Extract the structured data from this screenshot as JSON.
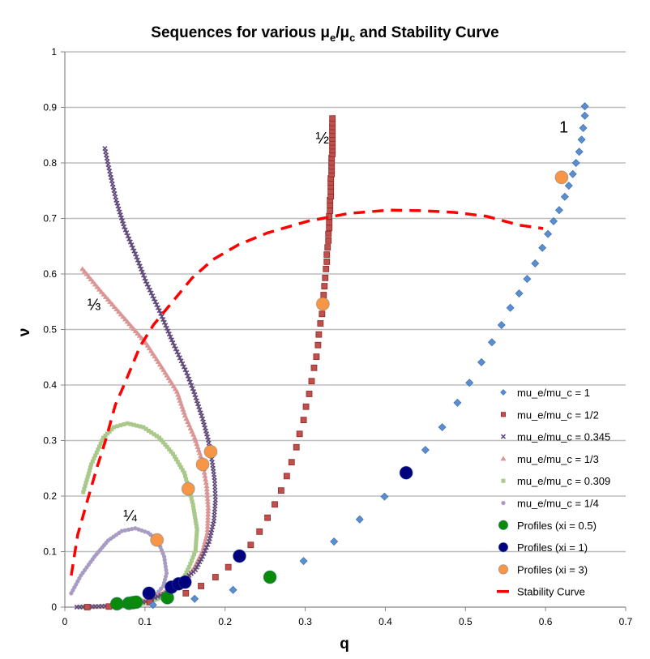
{
  "chart_data": {
    "type": "scatter",
    "title": "Sequences for various μe/μc and Stability Curve",
    "title_parts": {
      "pre": "Sequences for various μ",
      "sub1": "e",
      "mid": "/μ",
      "sub2": "c",
      "post": " and Stability Curve"
    },
    "xlabel": "q",
    "ylabel": "ν",
    "xlim": [
      0,
      0.7
    ],
    "ylim": [
      0,
      1
    ],
    "xticks": [
      "0",
      "0.1",
      "0.2",
      "0.3",
      "0.4",
      "0.5",
      "0.6",
      "0.7"
    ],
    "yticks": [
      "0",
      "0.1",
      "0.2",
      "0.3",
      "0.4",
      "0.5",
      "0.6",
      "0.7",
      "0.8",
      "0.9",
      "1"
    ],
    "grid": "horizontal",
    "legend_position": "right",
    "annotations": [
      {
        "text": "1",
        "x": 0.617,
        "y": 0.855
      },
      {
        "text": "½",
        "x": 0.313,
        "y": 0.835
      },
      {
        "text": "⅓",
        "x": 0.028,
        "y": 0.535
      },
      {
        "text": "¼",
        "x": 0.073,
        "y": 0.155
      }
    ],
    "series": [
      {
        "name": "mu_e/mu_c = 1",
        "marker": "diamond",
        "color": "#5a8ed0",
        "points": [
          [
            0.11,
            0.004
          ],
          [
            0.162,
            0.015
          ],
          [
            0.21,
            0.031
          ],
          [
            0.298,
            0.083
          ],
          [
            0.336,
            0.118
          ],
          [
            0.368,
            0.158
          ],
          [
            0.399,
            0.199
          ],
          [
            0.45,
            0.283
          ],
          [
            0.471,
            0.324
          ],
          [
            0.49,
            0.368
          ],
          [
            0.505,
            0.404
          ],
          [
            0.52,
            0.441
          ],
          [
            0.533,
            0.477
          ],
          [
            0.545,
            0.508
          ],
          [
            0.556,
            0.539
          ],
          [
            0.567,
            0.565
          ],
          [
            0.577,
            0.591
          ],
          [
            0.587,
            0.619
          ],
          [
            0.596,
            0.647
          ],
          [
            0.603,
            0.672
          ],
          [
            0.61,
            0.695
          ],
          [
            0.617,
            0.715
          ],
          [
            0.624,
            0.739
          ],
          [
            0.629,
            0.759
          ],
          [
            0.634,
            0.78
          ],
          [
            0.638,
            0.8
          ],
          [
            0.642,
            0.82
          ],
          [
            0.645,
            0.842
          ],
          [
            0.647,
            0.863
          ],
          [
            0.649,
            0.885
          ],
          [
            0.649,
            0.902
          ]
        ]
      },
      {
        "name": "mu_e/mu_c = 1/2",
        "marker": "square",
        "color": "#c0504d",
        "points": [
          [
            0.028,
            0.0
          ],
          [
            0.055,
            0.001
          ],
          [
            0.106,
            0.009
          ],
          [
            0.151,
            0.025
          ],
          [
            0.17,
            0.038
          ],
          [
            0.188,
            0.054
          ],
          [
            0.204,
            0.072
          ],
          [
            0.232,
            0.112
          ],
          [
            0.243,
            0.136
          ],
          [
            0.253,
            0.161
          ],
          [
            0.262,
            0.185
          ],
          [
            0.27,
            0.21
          ],
          [
            0.277,
            0.236
          ],
          [
            0.283,
            0.261
          ],
          [
            0.289,
            0.288
          ],
          [
            0.293,
            0.312
          ],
          [
            0.298,
            0.337
          ],
          [
            0.301,
            0.361
          ],
          [
            0.305,
            0.384
          ],
          [
            0.308,
            0.407
          ],
          [
            0.311,
            0.431
          ],
          [
            0.314,
            0.451
          ],
          [
            0.316,
            0.472
          ],
          [
            0.317,
            0.491
          ],
          [
            0.319,
            0.511
          ],
          [
            0.321,
            0.528
          ],
          [
            0.323,
            0.562
          ],
          [
            0.324,
            0.578
          ],
          [
            0.325,
            0.593
          ],
          [
            0.326,
            0.609
          ],
          [
            0.327,
            0.622
          ],
          [
            0.327,
            0.635
          ],
          [
            0.328,
            0.648
          ],
          [
            0.329,
            0.66
          ],
          [
            0.329,
            0.672
          ],
          [
            0.33,
            0.683
          ],
          [
            0.33,
            0.693
          ],
          [
            0.33,
            0.704
          ],
          [
            0.331,
            0.714
          ],
          [
            0.331,
            0.724
          ],
          [
            0.331,
            0.733
          ],
          [
            0.332,
            0.74
          ],
          [
            0.332,
            0.749
          ],
          [
            0.332,
            0.758
          ],
          [
            0.332,
            0.765
          ],
          [
            0.332,
            0.772
          ],
          [
            0.333,
            0.78
          ],
          [
            0.333,
            0.787
          ],
          [
            0.333,
            0.794
          ],
          [
            0.333,
            0.801
          ],
          [
            0.333,
            0.809
          ],
          [
            0.334,
            0.816
          ],
          [
            0.334,
            0.823
          ],
          [
            0.334,
            0.83
          ],
          [
            0.334,
            0.837
          ],
          [
            0.334,
            0.844
          ],
          [
            0.334,
            0.851
          ],
          [
            0.334,
            0.858
          ],
          [
            0.334,
            0.865
          ],
          [
            0.334,
            0.872
          ],
          [
            0.334,
            0.88
          ]
        ]
      },
      {
        "name": "mu_e/mu_c = 0.345",
        "marker": "x",
        "color": "#604a7b",
        "points": [
          [
            0.05,
            0.826
          ],
          [
            0.054,
            0.797
          ],
          [
            0.064,
            0.733
          ],
          [
            0.074,
            0.685
          ],
          [
            0.088,
            0.636
          ],
          [
            0.101,
            0.587
          ],
          [
            0.118,
            0.534
          ],
          [
            0.135,
            0.476
          ],
          [
            0.152,
            0.422
          ],
          [
            0.161,
            0.388
          ],
          [
            0.172,
            0.339
          ],
          [
            0.179,
            0.301
          ],
          [
            0.184,
            0.261
          ],
          [
            0.187,
            0.228
          ],
          [
            0.188,
            0.193
          ],
          [
            0.186,
            0.155
          ],
          [
            0.18,
            0.118
          ],
          [
            0.172,
            0.091
          ],
          [
            0.163,
            0.067
          ],
          [
            0.155,
            0.057
          ],
          [
            0.131,
            0.028
          ],
          [
            0.101,
            0.01
          ],
          [
            0.071,
            0.003
          ],
          [
            0.038,
            0.001
          ],
          [
            0.015,
            0.0
          ]
        ]
      },
      {
        "name": "mu_e/mu_c = 1/3",
        "marker": "triangle",
        "color": "#d99694",
        "points": [
          [
            0.022,
            0.609
          ],
          [
            0.043,
            0.572
          ],
          [
            0.078,
            0.514
          ],
          [
            0.101,
            0.476
          ],
          [
            0.121,
            0.432
          ],
          [
            0.14,
            0.388
          ],
          [
            0.15,
            0.345
          ],
          [
            0.162,
            0.305
          ],
          [
            0.172,
            0.261
          ],
          [
            0.177,
            0.218
          ],
          [
            0.179,
            0.178
          ],
          [
            0.178,
            0.134
          ],
          [
            0.172,
            0.101
          ],
          [
            0.162,
            0.072
          ],
          [
            0.155,
            0.057
          ],
          [
            0.131,
            0.031
          ],
          [
            0.101,
            0.013
          ],
          [
            0.061,
            0.003
          ],
          [
            0.028,
            0.0
          ]
        ]
      },
      {
        "name": "mu_e/mu_c = 0.309",
        "marker": "dash",
        "color": "#a9c98a",
        "points": [
          [
            0.023,
            0.207
          ],
          [
            0.033,
            0.257
          ],
          [
            0.048,
            0.305
          ],
          [
            0.061,
            0.324
          ],
          [
            0.078,
            0.331
          ],
          [
            0.098,
            0.324
          ],
          [
            0.118,
            0.305
          ],
          [
            0.135,
            0.276
          ],
          [
            0.149,
            0.242
          ],
          [
            0.155,
            0.213
          ],
          [
            0.16,
            0.184
          ],
          [
            0.165,
            0.14
          ],
          [
            0.163,
            0.101
          ],
          [
            0.155,
            0.072
          ],
          [
            0.145,
            0.042
          ],
          [
            0.126,
            0.02
          ],
          [
            0.101,
            0.007
          ],
          [
            0.071,
            0.001
          ],
          [
            0.02,
            0.0
          ]
        ]
      },
      {
        "name": "mu_e/mu_c = 1/4",
        "marker": "star",
        "color": "#a99cc4",
        "points": [
          [
            0.008,
            0.025
          ],
          [
            0.02,
            0.057
          ],
          [
            0.037,
            0.091
          ],
          [
            0.054,
            0.12
          ],
          [
            0.071,
            0.137
          ],
          [
            0.088,
            0.142
          ],
          [
            0.104,
            0.134
          ],
          [
            0.116,
            0.12
          ],
          [
            0.124,
            0.091
          ],
          [
            0.127,
            0.061
          ],
          [
            0.123,
            0.038
          ],
          [
            0.114,
            0.023
          ],
          [
            0.101,
            0.01
          ],
          [
            0.068,
            0.003
          ],
          [
            0.017,
            0.001
          ]
        ]
      },
      {
        "name": "Profiles (xi = 0.5)",
        "marker": "circle",
        "color": "#0a8a0a",
        "points": [
          [
            0.065,
            0.006
          ],
          [
            0.08,
            0.007
          ],
          [
            0.085,
            0.008
          ],
          [
            0.089,
            0.009
          ],
          [
            0.128,
            0.017
          ],
          [
            0.256,
            0.054
          ]
        ]
      },
      {
        "name": "Profiles (xi = 1)",
        "marker": "circle",
        "color": "#00007f",
        "points": [
          [
            0.105,
            0.025
          ],
          [
            0.133,
            0.036
          ],
          [
            0.142,
            0.042
          ],
          [
            0.15,
            0.045
          ],
          [
            0.218,
            0.092
          ],
          [
            0.426,
            0.242
          ]
        ]
      },
      {
        "name": "Profiles (xi = 3)",
        "marker": "circle",
        "color": "#f79646",
        "points": [
          [
            0.115,
            0.121
          ],
          [
            0.154,
            0.213
          ],
          [
            0.172,
            0.257
          ],
          [
            0.182,
            0.28
          ],
          [
            0.322,
            0.546
          ],
          [
            0.62,
            0.774
          ]
        ]
      },
      {
        "name": "Stability Curve",
        "marker": "dashed-line",
        "color": "#ff0000",
        "points": [
          [
            0.008,
            0.057
          ],
          [
            0.016,
            0.13
          ],
          [
            0.028,
            0.191
          ],
          [
            0.04,
            0.251
          ],
          [
            0.051,
            0.301
          ],
          [
            0.063,
            0.364
          ],
          [
            0.073,
            0.397
          ],
          [
            0.094,
            0.47
          ],
          [
            0.111,
            0.509
          ],
          [
            0.139,
            0.558
          ],
          [
            0.159,
            0.593
          ],
          [
            0.185,
            0.626
          ],
          [
            0.217,
            0.653
          ],
          [
            0.253,
            0.674
          ],
          [
            0.303,
            0.695
          ],
          [
            0.354,
            0.709
          ],
          [
            0.405,
            0.715
          ],
          [
            0.445,
            0.714
          ],
          [
            0.486,
            0.711
          ],
          [
            0.526,
            0.704
          ],
          [
            0.567,
            0.688
          ],
          [
            0.597,
            0.682
          ]
        ]
      }
    ]
  }
}
